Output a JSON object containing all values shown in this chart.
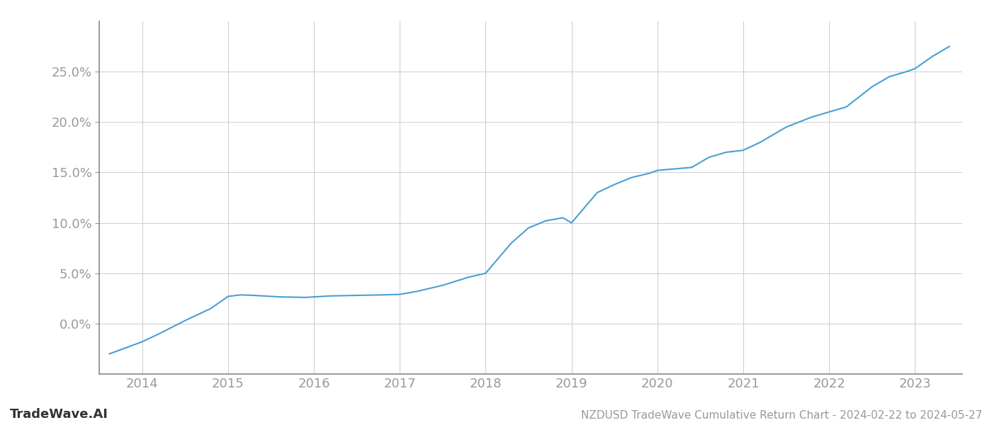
{
  "x_values": [
    2013.62,
    2014.0,
    2014.2,
    2014.5,
    2014.8,
    2015.0,
    2015.15,
    2015.3,
    2015.6,
    2015.9,
    2016.0,
    2016.2,
    2016.5,
    2016.8,
    2017.0,
    2017.2,
    2017.5,
    2017.8,
    2018.0,
    2018.15,
    2018.3,
    2018.5,
    2018.7,
    2018.9,
    2019.0,
    2019.15,
    2019.3,
    2019.5,
    2019.7,
    2019.9,
    2020.0,
    2020.2,
    2020.4,
    2020.6,
    2020.8,
    2021.0,
    2021.2,
    2021.5,
    2021.8,
    2022.0,
    2022.2,
    2022.5,
    2022.7,
    2022.9,
    2023.0,
    2023.2,
    2023.4
  ],
  "y_values": [
    -3.0,
    -1.8,
    -1.0,
    0.3,
    1.5,
    2.7,
    2.85,
    2.8,
    2.65,
    2.6,
    2.65,
    2.75,
    2.8,
    2.85,
    2.9,
    3.2,
    3.8,
    4.6,
    5.0,
    6.5,
    8.0,
    9.5,
    10.2,
    10.5,
    10.0,
    11.5,
    13.0,
    13.8,
    14.5,
    14.9,
    15.2,
    15.35,
    15.5,
    16.5,
    17.0,
    17.2,
    18.0,
    19.5,
    20.5,
    21.0,
    21.5,
    23.5,
    24.5,
    25.0,
    25.3,
    26.5,
    27.5
  ],
  "line_color": "#4a9fd4",
  "line_width": 1.5,
  "background_color": "#ffffff",
  "grid_color": "#cccccc",
  "tick_color": "#999999",
  "spine_color": "#888888",
  "title": "NZDUSD TradeWave Cumulative Return Chart - 2024-02-22 to 2024-05-27",
  "watermark": "TradeWave.AI",
  "xlim": [
    2013.5,
    2023.55
  ],
  "ylim": [
    -5.0,
    30.0
  ],
  "xticks": [
    2014,
    2015,
    2016,
    2017,
    2018,
    2019,
    2020,
    2021,
    2022,
    2023
  ],
  "yticks": [
    0.0,
    5.0,
    10.0,
    15.0,
    20.0,
    25.0
  ],
  "ytick_labels": [
    "0.0%",
    "5.0%",
    "10.0%",
    "15.0%",
    "20.0%",
    "25.0%"
  ],
  "title_fontsize": 11,
  "tick_fontsize": 13,
  "watermark_fontsize": 13,
  "figsize": [
    14.0,
    6.0
  ],
  "dpi": 100
}
